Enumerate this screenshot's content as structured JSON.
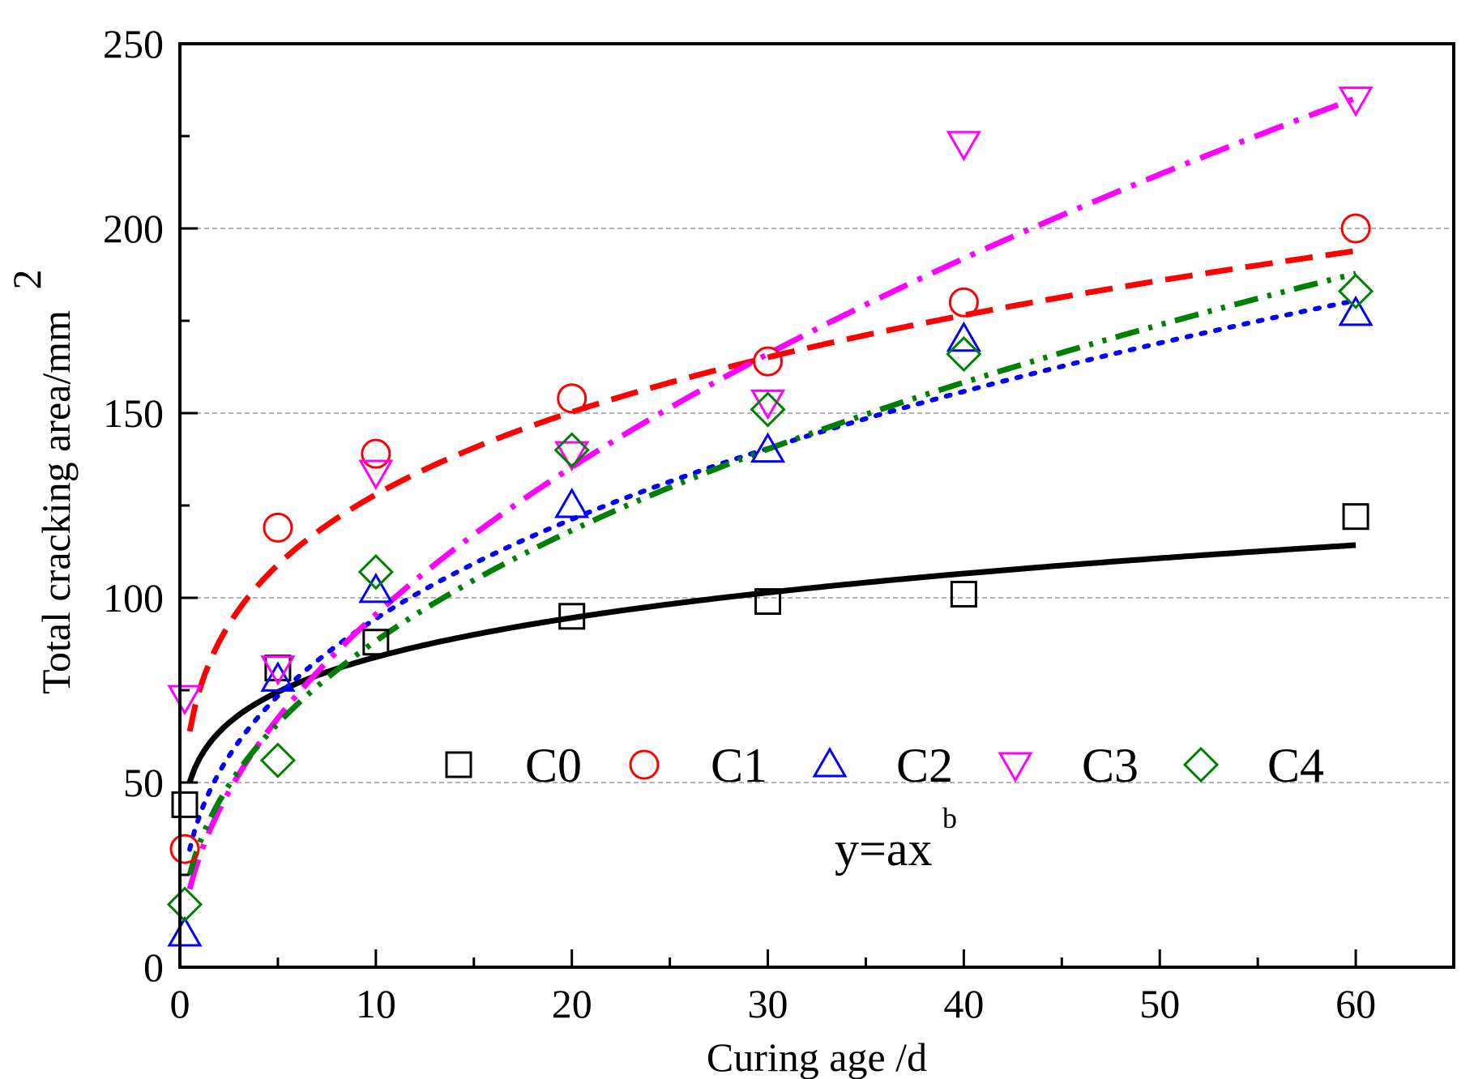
{
  "chart_data": {
    "type": "scatter",
    "xlabel": "Curing age /d",
    "ylabel": "Total cracking area/mm",
    "ylabel_sup": "2",
    "xlim": [
      0,
      65
    ],
    "ylim": [
      0,
      250
    ],
    "xticks": [
      0,
      10,
      20,
      30,
      40,
      50,
      60
    ],
    "yticks": [
      0,
      50,
      100,
      150,
      200,
      250
    ],
    "grid": "horizontal dashed",
    "annotation": "y=ax",
    "annotation_sup": "b",
    "legend_position": "center",
    "series": [
      {
        "name": "C0",
        "marker": "square",
        "color": "#000000",
        "line_style": "solid",
        "x": [
          0,
          5,
          10,
          20,
          30,
          40,
          60
        ],
        "y": [
          44,
          81,
          88,
          95,
          99,
          101,
          122
        ],
        "fit": {
          "a": 56.5,
          "b": 0.172
        }
      },
      {
        "name": "C1",
        "marker": "circle",
        "color": "#ff0000",
        "line_style": "dash",
        "x": [
          0,
          5,
          10,
          20,
          30,
          40,
          60
        ],
        "y": [
          32,
          119,
          139,
          154,
          164,
          180,
          200
        ],
        "fit": {
          "a": 75,
          "b": 0.232
        }
      },
      {
        "name": "C2",
        "marker": "triangle-up",
        "color": "#0000ff",
        "line_style": "dot",
        "x": [
          0,
          5,
          10,
          20,
          30,
          40,
          60
        ],
        "y": [
          9,
          78,
          102,
          125,
          140,
          170,
          177
        ],
        "fit": {
          "a": 41,
          "b": 0.362
        }
      },
      {
        "name": "C3",
        "marker": "triangle-down",
        "color": "#ff00ff",
        "line_style": "dashdot",
        "x": [
          0,
          5,
          10,
          20,
          30,
          40,
          60
        ],
        "y": [
          73,
          81,
          134,
          139,
          153,
          223,
          235
        ],
        "fit": {
          "a": 30,
          "b": 0.503
        }
      },
      {
        "name": "C4",
        "marker": "diamond",
        "color": "#008000",
        "line_style": "dashdotdot",
        "x": [
          0,
          5,
          10,
          20,
          30,
          40,
          60
        ],
        "y": [
          17,
          56,
          107,
          140,
          151,
          166,
          183
        ],
        "fit": {
          "a": 33.5,
          "b": 0.421
        }
      }
    ]
  }
}
